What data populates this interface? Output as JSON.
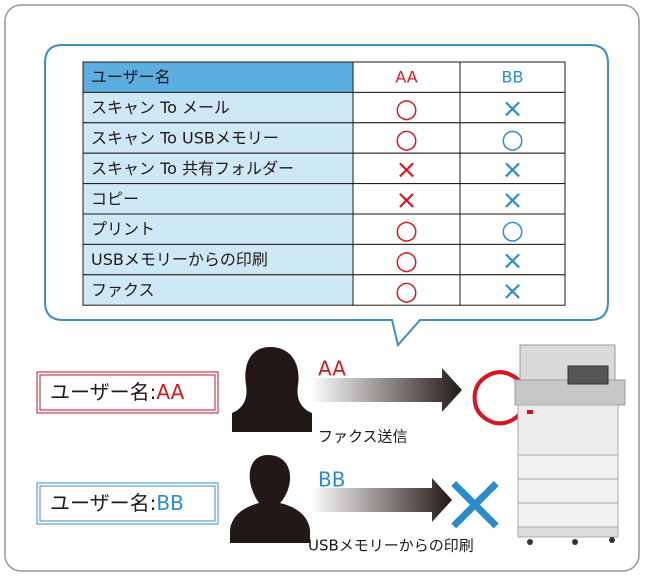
{
  "table": {
    "header": [
      "ユーザー名",
      "AA",
      "BB"
    ],
    "rows": [
      [
        "スキャン To メール",
        "○",
        "×"
      ],
      [
        "スキャン To USBメモリー",
        "○",
        "○"
      ],
      [
        "スキャン To 共有フォルダー",
        "×",
        "×"
      ],
      [
        "コピー",
        "×",
        "×"
      ],
      [
        "プリント",
        "○",
        "○"
      ],
      [
        "USBメモリーからの印刷",
        "○",
        "×"
      ],
      [
        "ファクス",
        "○",
        "×"
      ]
    ]
  },
  "users": [
    {
      "label": "ユーザー名:",
      "name": "AA",
      "arrow_label": "AA",
      "action": "ファクス送信",
      "result": "○"
    },
    {
      "label": "ユーザー名:",
      "name": "BB",
      "arrow_label": "BB",
      "action": "USBメモリーからの印刷",
      "result": "×"
    }
  ]
}
